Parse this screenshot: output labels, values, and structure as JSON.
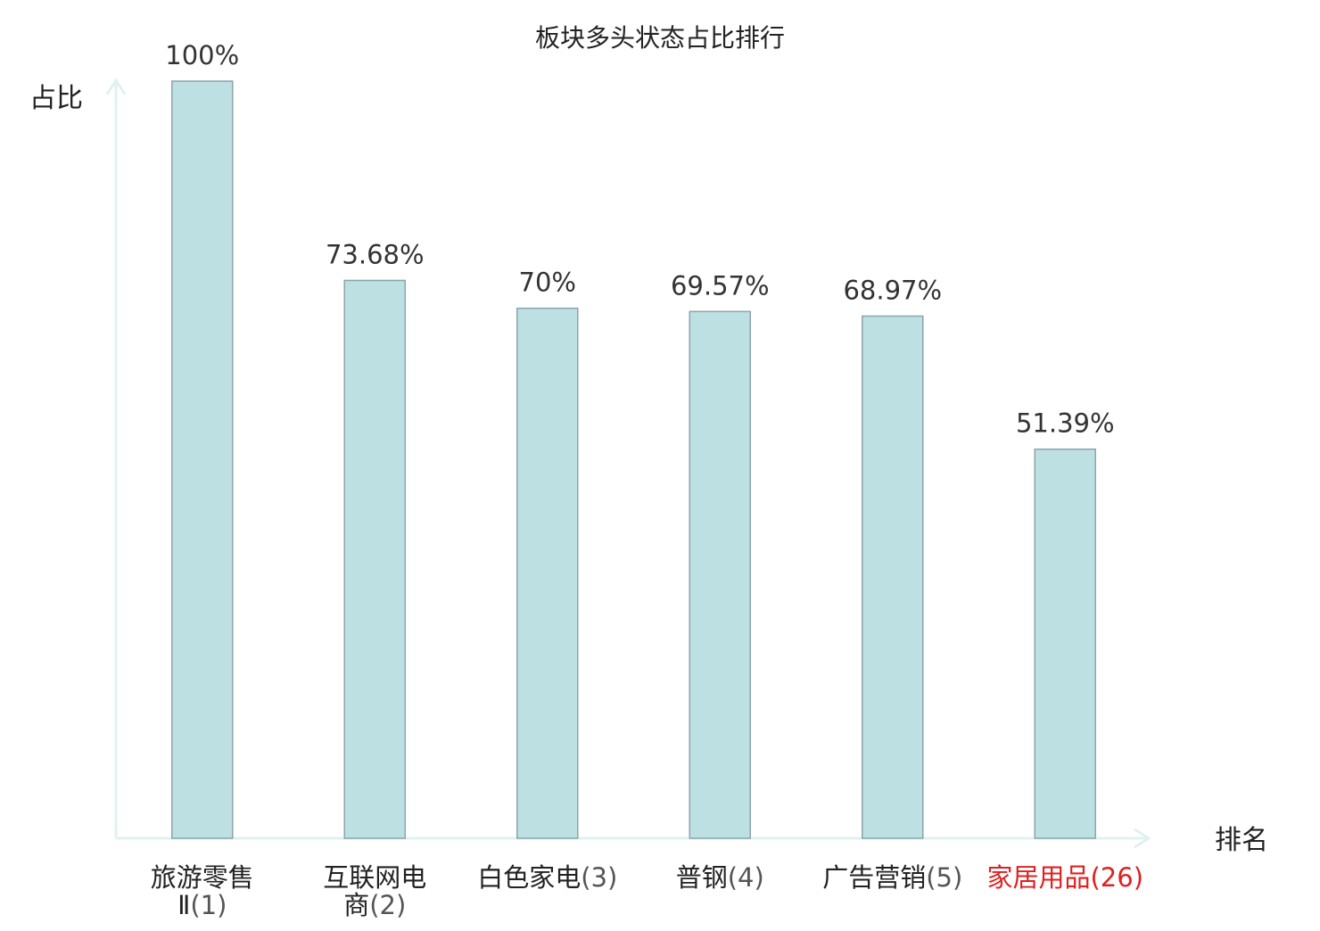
{
  "chart_data": {
    "type": "bar",
    "title": "板块多头状态占比排行",
    "ylabel": "占比",
    "xlabel": "排名",
    "ylim": [
      0,
      100
    ],
    "grid": false,
    "categories": [
      {
        "name": "旅游零售",
        "name2": "Ⅱ",
        "rank": "(1)",
        "highlight": false
      },
      {
        "name": "互联网电",
        "name2": "商",
        "rank": "(2)",
        "highlight": false
      },
      {
        "name": "白色家电",
        "name2": "",
        "rank": "(3)",
        "highlight": false
      },
      {
        "name": "普钢",
        "name2": "",
        "rank": "(4)",
        "highlight": false
      },
      {
        "name": "广告营销",
        "name2": "",
        "rank": "(5)",
        "highlight": false
      },
      {
        "name": "家居用品",
        "name2": "",
        "rank": "(26)",
        "highlight": true
      }
    ],
    "values": [
      100,
      73.68,
      70,
      69.57,
      68.97,
      51.39
    ],
    "value_labels": [
      "100%",
      "73.68%",
      "70%",
      "69.57%",
      "68.97%",
      "51.39%"
    ],
    "colors": {
      "bar_fill": "#bde0e3",
      "bar_stroke": "#8aa6aa",
      "axis": "#e0f2ef",
      "text": "#222222",
      "label_text": "#333333",
      "rank_text": "#555555",
      "highlight": "#e02020"
    }
  }
}
